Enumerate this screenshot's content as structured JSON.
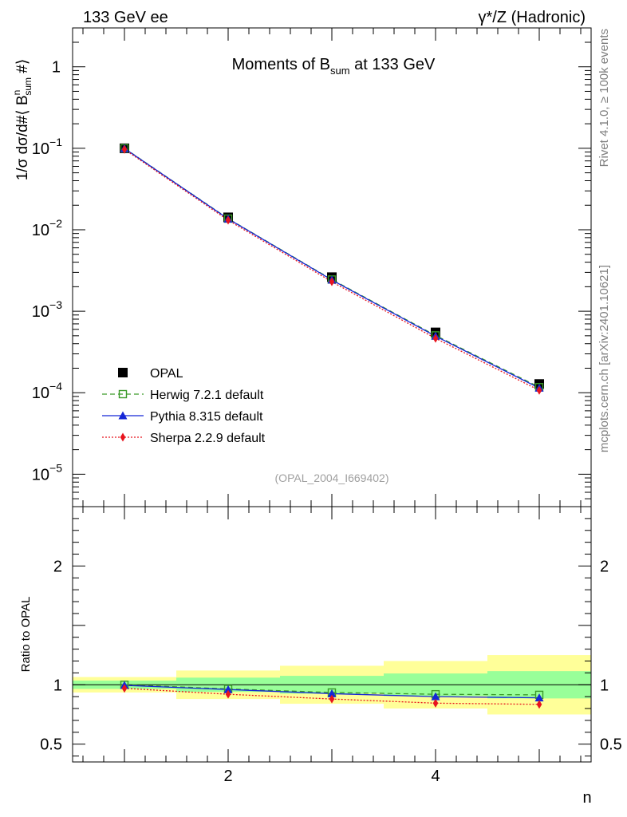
{
  "header": {
    "left": "133 GeV ee",
    "right": "γ*/Z (Hadronic)"
  },
  "side_text": {
    "rivet": "Rivet 4.1.0, ≥ 100k events",
    "mcplots": "mcplots.cern.ch [arXiv:2401.10621]"
  },
  "chart_data": [
    {
      "type": "line",
      "title": "Moments of B_sum at 133 GeV",
      "title_main": "Moments of B",
      "title_sub": "sum",
      "title_tail": " at 133 GeV",
      "ylabel": "1/σ  dσ/d#⟨ B^n_sum #⟩",
      "ylabel_parts": {
        "a": "1/σ   dσ/d#⟨ B",
        "sup": "n",
        "sub": "sum",
        "b": " #⟩"
      },
      "yscale": "log",
      "ylim": [
        4e-06,
        3
      ],
      "xlim": [
        0.5,
        5.5
      ],
      "y_ticks": [
        {
          "value": 1,
          "base": "1",
          "exp": ""
        },
        {
          "value": 0.1,
          "base": "10",
          "exp": "−1"
        },
        {
          "value": 0.01,
          "base": "10",
          "exp": "−2"
        },
        {
          "value": 0.001,
          "base": "10",
          "exp": "−3"
        },
        {
          "value": 0.0001,
          "base": "10",
          "exp": "−4"
        },
        {
          "value": 1e-05,
          "base": "10",
          "exp": "−5"
        }
      ],
      "watermark": "(OPAL_2004_I669402)",
      "x": [
        1,
        2,
        3,
        4,
        5
      ],
      "series": [
        {
          "name": "OPAL",
          "label": "OPAL",
          "color": "#000000",
          "marker": "square",
          "line": "none",
          "values": [
            0.1,
            0.0142,
            0.00262,
            0.00055,
            0.000128
          ]
        },
        {
          "name": "Herwig",
          "label": "Herwig 7.2.1 default",
          "color": "#3a9a28",
          "marker": "open-square",
          "line": "dashed",
          "values": [
            0.1,
            0.0137,
            0.00245,
            0.000505,
            0.000117
          ]
        },
        {
          "name": "Pythia",
          "label": "Pythia 8.315 default",
          "color": "#1526d6",
          "marker": "triangle",
          "line": "solid",
          "values": [
            0.0995,
            0.0136,
            0.00242,
            0.000495,
            0.000114
          ]
        },
        {
          "name": "Sherpa",
          "label": "Sherpa 2.2.9 default",
          "color": "#e8141e",
          "marker": "diamond",
          "line": "dotted",
          "values": [
            0.097,
            0.0131,
            0.0023,
            0.000465,
            0.000107
          ]
        }
      ]
    },
    {
      "type": "line",
      "ylabel": "Ratio to OPAL",
      "xlabel": "n",
      "ylim": [
        0.35,
        2.5
      ],
      "xlim": [
        0.5,
        5.5
      ],
      "y_tick_labels": [
        {
          "value": 0.5,
          "label": "0.5"
        },
        {
          "value": 1,
          "label": "1"
        },
        {
          "value": 2,
          "label": "2"
        }
      ],
      "x_tick_labels": [
        {
          "value": 2,
          "label": "2"
        },
        {
          "value": 4,
          "label": "4"
        }
      ],
      "bands": {
        "bins": [
          [
            0.5,
            1.5
          ],
          [
            1.5,
            2.5
          ],
          [
            2.5,
            3.5
          ],
          [
            3.5,
            4.5
          ],
          [
            4.5,
            5.5
          ]
        ],
        "inner": [
          [
            0.965,
            1.035
          ],
          [
            0.94,
            1.06
          ],
          [
            0.925,
            1.075
          ],
          [
            0.905,
            1.095
          ],
          [
            0.885,
            1.115
          ]
        ],
        "outer": [
          [
            0.935,
            1.065
          ],
          [
            0.88,
            1.12
          ],
          [
            0.84,
            1.16
          ],
          [
            0.8,
            1.2
          ],
          [
            0.75,
            1.25
          ]
        ],
        "inner_color": "#99ff99",
        "outer_color": "#ffff99"
      },
      "x": [
        1,
        2,
        3,
        4,
        5
      ],
      "series": [
        {
          "name": "Herwig",
          "color": "#3a9a28",
          "marker": "open-square",
          "line": "dashed",
          "values": [
            1.0,
            0.965,
            0.935,
            0.92,
            0.915
          ]
        },
        {
          "name": "Pythia",
          "color": "#1526d6",
          "marker": "triangle",
          "line": "solid",
          "values": [
            0.995,
            0.96,
            0.925,
            0.9,
            0.89
          ]
        },
        {
          "name": "Sherpa",
          "color": "#e8141e",
          "marker": "diamond",
          "line": "dotted",
          "values": [
            0.97,
            0.92,
            0.88,
            0.845,
            0.835
          ]
        }
      ]
    }
  ]
}
